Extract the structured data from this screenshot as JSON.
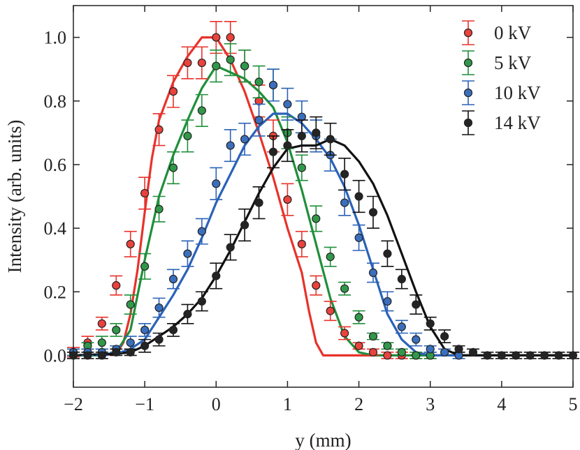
{
  "chart_data": {
    "type": "scatter",
    "title": "",
    "xlabel": "y (mm)",
    "ylabel": "Intensity (arb. units)",
    "xlim": [
      -2,
      5
    ],
    "ylim": [
      -0.1,
      1.1
    ],
    "xticks": [
      -2,
      -1,
      0,
      1,
      2,
      3,
      4,
      5
    ],
    "xtick_labels": [
      "−2",
      "−1",
      "0",
      "1",
      "2",
      "3",
      "4",
      "5"
    ],
    "yticks": [
      0.0,
      0.2,
      0.4,
      0.6,
      0.8,
      1.0
    ],
    "ytick_labels": [
      "0.0",
      "0.2",
      "0.4",
      "0.6",
      "0.8",
      "1.0"
    ],
    "grid": false,
    "legend_position": "top-right",
    "series": [
      {
        "name": "0 kV",
        "color": "#e8322b",
        "points": {
          "x": [
            -2.0,
            -1.8,
            -1.6,
            -1.4,
            -1.2,
            -1.0,
            -0.8,
            -0.6,
            -0.4,
            -0.2,
            0.0,
            0.2,
            0.4,
            0.6,
            0.8,
            1.0,
            1.2,
            1.4,
            1.6,
            1.8,
            2.0,
            2.2,
            2.4,
            2.6,
            2.8,
            3.0
          ],
          "y": [
            0.01,
            0.04,
            0.1,
            0.22,
            0.35,
            0.51,
            0.71,
            0.83,
            0.92,
            0.92,
            1.0,
            1.0,
            0.91,
            0.8,
            0.69,
            0.49,
            0.35,
            0.22,
            0.14,
            0.07,
            0.03,
            0.01,
            0.0,
            0.0,
            0.0,
            0.0
          ],
          "err": [
            0.015,
            0.02,
            0.02,
            0.03,
            0.04,
            0.05,
            0.05,
            0.05,
            0.05,
            0.05,
            0.05,
            0.05,
            0.05,
            0.05,
            0.05,
            0.05,
            0.04,
            0.03,
            0.03,
            0.02,
            0.01,
            0.01,
            0.01,
            0.01,
            0.01,
            0.01
          ]
        },
        "model": {
          "x": [
            -2.0,
            -1.8,
            -1.6,
            -1.4,
            -1.3,
            -1.2,
            -1.1,
            -1.0,
            -0.9,
            -0.8,
            -0.6,
            -0.4,
            -0.2,
            0.0,
            0.2,
            0.4,
            0.6,
            0.8,
            1.0,
            1.2,
            1.3,
            1.4,
            1.5,
            1.6,
            2.0,
            3.0,
            4.0,
            5.0
          ],
          "y": [
            0.0,
            0.0,
            0.0,
            0.005,
            0.04,
            0.13,
            0.27,
            0.45,
            0.62,
            0.74,
            0.86,
            0.94,
            1.0,
            1.0,
            0.93,
            0.83,
            0.7,
            0.56,
            0.4,
            0.26,
            0.14,
            0.04,
            0.0,
            0.0,
            0.0,
            0.0,
            0.0,
            0.0
          ]
        }
      },
      {
        "name": "5 kV",
        "color": "#1f8f3a",
        "points": {
          "x": [
            -2.0,
            -1.8,
            -1.6,
            -1.4,
            -1.2,
            -1.0,
            -0.8,
            -0.6,
            -0.4,
            -0.2,
            0.0,
            0.2,
            0.4,
            0.6,
            0.8,
            1.0,
            1.2,
            1.4,
            1.6,
            1.8,
            2.0,
            2.2,
            2.4,
            2.6,
            2.8,
            3.0
          ],
          "y": [
            0.01,
            0.03,
            0.04,
            0.08,
            0.16,
            0.28,
            0.46,
            0.59,
            0.69,
            0.77,
            0.91,
            0.93,
            0.91,
            0.86,
            0.85,
            0.7,
            0.59,
            0.43,
            0.31,
            0.21,
            0.12,
            0.06,
            0.03,
            0.01,
            0.0,
            0.0
          ],
          "err": [
            0.01,
            0.01,
            0.02,
            0.02,
            0.03,
            0.04,
            0.04,
            0.05,
            0.05,
            0.05,
            0.05,
            0.05,
            0.05,
            0.05,
            0.05,
            0.05,
            0.04,
            0.04,
            0.03,
            0.02,
            0.02,
            0.01,
            0.01,
            0.01,
            0.01,
            0.01
          ]
        },
        "model": {
          "x": [
            -2.0,
            -1.6,
            -1.4,
            -1.2,
            -1.0,
            -0.8,
            -0.6,
            -0.4,
            -0.2,
            0.0,
            0.2,
            0.4,
            0.6,
            0.8,
            1.0,
            1.2,
            1.4,
            1.6,
            1.8,
            2.0,
            2.2,
            2.4,
            3.0,
            4.0,
            5.0
          ],
          "y": [
            0.0,
            0.0,
            0.01,
            0.08,
            0.3,
            0.5,
            0.63,
            0.74,
            0.84,
            0.91,
            0.89,
            0.87,
            0.83,
            0.78,
            0.67,
            0.52,
            0.35,
            0.18,
            0.06,
            0.01,
            0.0,
            0.0,
            0.0,
            0.0,
            0.0
          ]
        }
      },
      {
        "name": "10 kV",
        "color": "#2a62b8",
        "points": {
          "x": [
            -2.0,
            -1.8,
            -1.6,
            -1.4,
            -1.2,
            -1.0,
            -0.8,
            -0.6,
            -0.4,
            -0.2,
            0.0,
            0.2,
            0.4,
            0.6,
            0.8,
            1.0,
            1.2,
            1.4,
            1.6,
            1.8,
            2.0,
            2.2,
            2.4,
            2.6,
            2.8,
            3.0,
            3.2,
            3.4
          ],
          "y": [
            0.01,
            0.01,
            0.01,
            0.02,
            0.04,
            0.08,
            0.15,
            0.24,
            0.32,
            0.39,
            0.54,
            0.66,
            0.68,
            0.74,
            0.85,
            0.79,
            0.75,
            0.69,
            0.63,
            0.48,
            0.37,
            0.26,
            0.17,
            0.09,
            0.05,
            0.02,
            0.01,
            0.0
          ],
          "err": [
            0.01,
            0.01,
            0.01,
            0.01,
            0.02,
            0.02,
            0.03,
            0.03,
            0.04,
            0.04,
            0.05,
            0.05,
            0.05,
            0.05,
            0.05,
            0.05,
            0.05,
            0.05,
            0.05,
            0.04,
            0.04,
            0.03,
            0.03,
            0.02,
            0.02,
            0.01,
            0.01,
            0.01
          ]
        },
        "model": {
          "x": [
            -2.0,
            -1.4,
            -1.2,
            -1.0,
            -0.8,
            -0.6,
            -0.4,
            -0.2,
            0.0,
            0.2,
            0.4,
            0.6,
            0.8,
            1.0,
            1.2,
            1.4,
            1.6,
            1.8,
            2.0,
            2.2,
            2.4,
            2.6,
            2.8,
            3.0,
            4.0,
            5.0
          ],
          "y": [
            0.0,
            0.005,
            0.02,
            0.05,
            0.12,
            0.19,
            0.27,
            0.37,
            0.48,
            0.57,
            0.66,
            0.72,
            0.76,
            0.76,
            0.73,
            0.68,
            0.62,
            0.53,
            0.41,
            0.27,
            0.13,
            0.05,
            0.01,
            0.0,
            0.0,
            0.0
          ]
        }
      },
      {
        "name": "14 kV",
        "color": "#111111",
        "points": {
          "x": [
            -2.0,
            -1.8,
            -1.6,
            -1.4,
            -1.2,
            -1.0,
            -0.8,
            -0.6,
            -0.4,
            -0.2,
            0.0,
            0.2,
            0.4,
            0.6,
            0.8,
            1.0,
            1.2,
            1.4,
            1.6,
            1.8,
            2.0,
            2.2,
            2.4,
            2.6,
            2.8,
            3.0,
            3.2,
            3.4,
            3.6,
            3.8,
            4.0,
            4.2,
            4.4,
            4.6,
            4.8,
            5.0
          ],
          "y": [
            0.0,
            0.0,
            0.0,
            0.01,
            0.01,
            0.03,
            0.05,
            0.08,
            0.13,
            0.17,
            0.25,
            0.34,
            0.41,
            0.48,
            0.64,
            0.66,
            0.69,
            0.7,
            0.68,
            0.57,
            0.5,
            0.45,
            0.32,
            0.24,
            0.16,
            0.1,
            0.06,
            0.02,
            0.01,
            0.0,
            0.0,
            0.0,
            0.0,
            0.0,
            0.0,
            0.0
          ],
          "err": [
            0.01,
            0.01,
            0.01,
            0.01,
            0.01,
            0.02,
            0.02,
            0.02,
            0.03,
            0.03,
            0.04,
            0.04,
            0.05,
            0.05,
            0.05,
            0.05,
            0.05,
            0.05,
            0.05,
            0.05,
            0.05,
            0.05,
            0.04,
            0.03,
            0.03,
            0.02,
            0.02,
            0.01,
            0.01,
            0.01,
            0.01,
            0.01,
            0.01,
            0.01,
            0.01,
            0.01
          ]
        },
        "model": {
          "x": [
            -2.0,
            -1.4,
            -1.2,
            -1.0,
            -0.8,
            -0.6,
            -0.4,
            -0.2,
            0.0,
            0.2,
            0.4,
            0.6,
            0.8,
            1.0,
            1.2,
            1.4,
            1.6,
            1.8,
            2.0,
            2.2,
            2.4,
            2.6,
            2.8,
            3.0,
            3.2,
            3.4,
            4.0,
            5.0
          ],
          "y": [
            0.0,
            0.005,
            0.01,
            0.03,
            0.06,
            0.09,
            0.13,
            0.18,
            0.25,
            0.33,
            0.42,
            0.51,
            0.59,
            0.65,
            0.66,
            0.66,
            0.68,
            0.66,
            0.61,
            0.54,
            0.44,
            0.32,
            0.2,
            0.09,
            0.02,
            0.0,
            0.0,
            0.0
          ]
        }
      }
    ]
  }
}
